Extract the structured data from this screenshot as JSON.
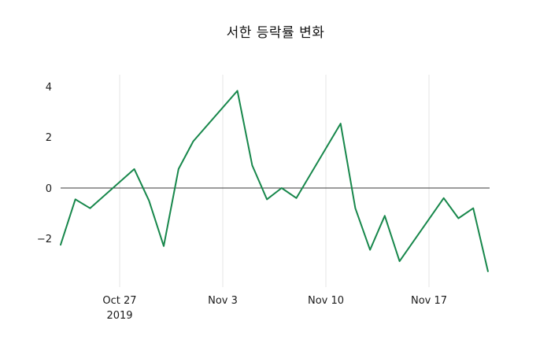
{
  "chart": {
    "title": "서한 등락률 변화"
  },
  "chart_data": {
    "type": "line",
    "title": "서한 등락률 변화",
    "series_name": "등락률",
    "line_color": "#17874b",
    "grid": "vertical-only",
    "zero_line": true,
    "legend": "none",
    "ylim": [
      -3.8,
      4.5
    ],
    "yticks": [
      4,
      2,
      0,
      -2
    ],
    "ytick_labels": [
      "4",
      "2",
      "0",
      "−2"
    ],
    "xticks": [
      {
        "date": "2019-10-27",
        "label": "Oct 27",
        "sublabel": "2019"
      },
      {
        "date": "2019-11-03",
        "label": "Nov 3"
      },
      {
        "date": "2019-11-10",
        "label": "Nov 10"
      },
      {
        "date": "2019-11-17",
        "label": "Nov 17"
      }
    ],
    "x": [
      "2019-10-23",
      "2019-10-24",
      "2019-10-25",
      "2019-10-28",
      "2019-10-29",
      "2019-10-30",
      "2019-10-31",
      "2019-11-01",
      "2019-11-04",
      "2019-11-05",
      "2019-11-06",
      "2019-11-07",
      "2019-11-08",
      "2019-11-11",
      "2019-11-12",
      "2019-11-13",
      "2019-11-14",
      "2019-11-15",
      "2019-11-18",
      "2019-11-19",
      "2019-11-20",
      "2019-11-21"
    ],
    "values": [
      -2.25,
      -0.45,
      -0.8,
      0.75,
      -0.5,
      -2.3,
      0.75,
      1.85,
      3.85,
      0.9,
      -0.45,
      0.0,
      -0.4,
      2.55,
      -0.8,
      -2.45,
      -1.1,
      -2.9,
      -0.4,
      -1.2,
      -0.8,
      -3.3
    ]
  }
}
